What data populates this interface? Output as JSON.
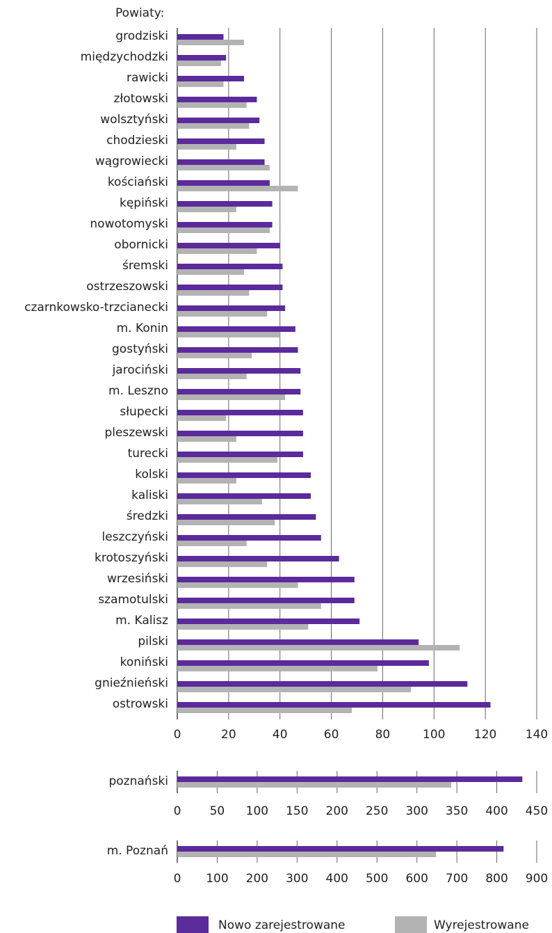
{
  "header_label": "Powiaty:",
  "colors": {
    "new": "#5b2a9b",
    "removed": "#b3b3b3",
    "grid": "#666666"
  },
  "legend": {
    "new_label": "Nowo zarejestrowane",
    "removed_label": "Wyrejestrowane"
  },
  "chart_data": [
    {
      "type": "bar",
      "orientation": "horizontal",
      "ylabel": "Powiaty:",
      "xlim": [
        0,
        140
      ],
      "xticks": [
        0,
        20,
        40,
        60,
        80,
        100,
        120,
        140
      ],
      "grid": true,
      "legend_position": "bottom",
      "categories": [
        "grodziski",
        "międzychodzki",
        "rawicki",
        "złotowski",
        "wolsztyński",
        "chodzieski",
        "wągrowiecki",
        "kościański",
        "kępiński",
        "nowotomyski",
        "obornicki",
        "śremski",
        "ostrzeszowski",
        "czarnkowsko-trzcianecki",
        "m. Konin",
        "gostyński",
        "jarociński",
        "m. Leszno",
        "słupecki",
        "pleszewski",
        "turecki",
        "kolski",
        "kaliski",
        "średzki",
        "leszczyński",
        "krotoszyński",
        "wrzesiński",
        "szamotulski",
        "m. Kalisz",
        "pilski",
        "koniński",
        "gnieźnieński",
        "ostrowski"
      ],
      "series": [
        {
          "name": "Nowo zarejestrowane",
          "values": [
            18,
            19,
            26,
            31,
            32,
            34,
            34,
            36,
            37,
            37,
            40,
            41,
            41,
            42,
            46,
            47,
            48,
            48,
            49,
            49,
            49,
            52,
            52,
            54,
            56,
            63,
            69,
            69,
            71,
            94,
            98,
            113,
            122
          ]
        },
        {
          "name": "Wyrejestrowane",
          "values": [
            26,
            17,
            18,
            27,
            28,
            23,
            36,
            47,
            23,
            36,
            31,
            26,
            28,
            35,
            40,
            29,
            27,
            42,
            19,
            23,
            39,
            23,
            33,
            38,
            27,
            35,
            47,
            56,
            51,
            110,
            78,
            91,
            68
          ]
        }
      ]
    },
    {
      "type": "bar",
      "orientation": "horizontal",
      "xlim": [
        0,
        450
      ],
      "xticks": [
        0,
        50,
        100,
        150,
        200,
        250,
        300,
        350,
        400,
        450
      ],
      "grid": true,
      "categories": [
        "poznański"
      ],
      "series": [
        {
          "name": "Nowo zarejestrowane",
          "values": [
            432
          ]
        },
        {
          "name": "Wyrejestrowane",
          "values": [
            343
          ]
        }
      ]
    },
    {
      "type": "bar",
      "orientation": "horizontal",
      "xlim": [
        0,
        900
      ],
      "xticks": [
        0,
        100,
        200,
        300,
        400,
        500,
        600,
        700,
        800,
        900
      ],
      "grid": true,
      "categories": [
        "m. Poznań"
      ],
      "series": [
        {
          "name": "Nowo zarejestrowane",
          "values": [
            817
          ]
        },
        {
          "name": "Wyrejestrowane",
          "values": [
            648
          ]
        }
      ]
    }
  ]
}
